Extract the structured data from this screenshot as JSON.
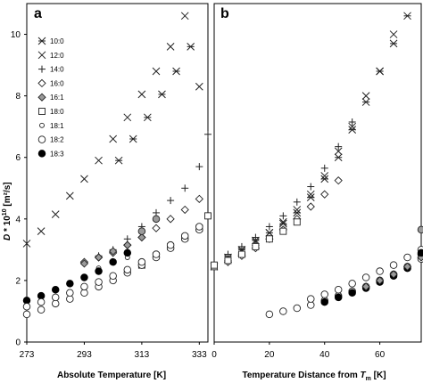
{
  "chart_data": [
    {
      "panel": "a",
      "type": "scatter",
      "xlabel": "Absolute Temperature [K]",
      "ylabel": "D * 10^10 [m²/s]",
      "xlim": [
        273,
        336
      ],
      "ylim": [
        0,
        11
      ],
      "xticks": [
        "273",
        "293",
        "313",
        "333"
      ],
      "yticks": [
        "0",
        "2",
        "4",
        "6",
        "8",
        "10"
      ],
      "legend": "top-left",
      "series": [
        {
          "name": "10:0",
          "marker": "asterisk",
          "x": [
            305,
            310,
            315,
            320,
            325,
            330
          ],
          "y": [
            5.9,
            6.6,
            7.3,
            8.05,
            8.8,
            9.6
          ]
        },
        {
          "name": "12:0",
          "marker": "x",
          "x": [
            273,
            278,
            283,
            288,
            293,
            298,
            303,
            308,
            313,
            318,
            323,
            328,
            333
          ],
          "y": [
            3.2,
            3.6,
            4.15,
            4.75,
            5.3,
            5.9,
            6.6,
            7.3,
            8.05,
            8.8,
            9.6,
            10.6,
            8.3
          ]
        },
        {
          "name": "14:0",
          "marker": "plus",
          "x": [
            293,
            298,
            303,
            308,
            313,
            318,
            323,
            328,
            333,
            336
          ],
          "y": [
            2.6,
            2.8,
            3.0,
            3.35,
            3.75,
            4.2,
            4.6,
            5.0,
            5.7,
            6.75
          ]
        },
        {
          "name": "16:0",
          "marker": "diamond",
          "x": [
            293,
            298,
            303,
            308,
            313,
            318,
            323,
            328,
            333
          ],
          "y": [
            2.6,
            2.75,
            2.9,
            3.15,
            3.4,
            3.7,
            4.0,
            4.3,
            4.65
          ]
        },
        {
          "name": "16:1",
          "marker": "diamond-gray",
          "x": [
            293,
            298,
            303,
            308,
            313
          ],
          "y": [
            2.55,
            2.75,
            2.95,
            3.15,
            3.4
          ]
        },
        {
          "name": "18:0",
          "marker": "square",
          "x": [
            313,
            318,
            323,
            328,
            333,
            336
          ],
          "y": [
            2.5,
            2.8,
            3.1,
            3.4,
            3.7,
            4.1
          ]
        },
        {
          "name": "18:1",
          "marker": "circle-small",
          "x": [
            298,
            303,
            308
          ],
          "y": [
            2.4,
            2.6,
            2.75
          ]
        },
        {
          "name": "18:2",
          "marker": "circle",
          "x": [
            273,
            278,
            283,
            288,
            293,
            298,
            303,
            308,
            313,
            318,
            323,
            328,
            333
          ],
          "y": [
            0.9,
            1.05,
            1.25,
            1.4,
            1.6,
            1.8,
            2.0,
            2.25,
            2.5,
            2.75,
            3.05,
            3.35,
            3.65
          ]
        },
        {
          "name": "18:3",
          "marker": "circle-filled",
          "x": [
            273,
            278,
            283,
            288,
            293,
            298,
            303,
            308
          ],
          "y": [
            1.35,
            1.5,
            1.7,
            1.9,
            2.1,
            2.3,
            2.6,
            2.9
          ]
        },
        {
          "name": "",
          "marker": "circle-gray",
          "x": [
            313,
            318
          ],
          "y": [
            3.6,
            4.0
          ]
        },
        {
          "name": "",
          "marker": "circle",
          "x": [
            273,
            278,
            283,
            288,
            293,
            298,
            303,
            308,
            313,
            318,
            323,
            328,
            333
          ],
          "y": [
            1.15,
            1.3,
            1.45,
            1.6,
            1.8,
            1.95,
            2.15,
            2.35,
            2.6,
            2.85,
            3.15,
            3.45,
            3.75
          ]
        }
      ]
    },
    {
      "panel": "b",
      "type": "scatter",
      "xlabel": "Temperature Distance from T_m [K]",
      "xlabel_main": "Temperature Distance from ",
      "xlabel_sym": "T",
      "xlabel_sub": "m",
      "xlabel_unit": " [K]",
      "xlim": [
        0,
        75
      ],
      "ylim": [
        0,
        11
      ],
      "xticks": [
        "0",
        "20",
        "40",
        "60"
      ],
      "series": [
        {
          "name": "10:0",
          "marker": "asterisk",
          "x": [
            5,
            10,
            15,
            20,
            25,
            30,
            35,
            40,
            45,
            50,
            55,
            60,
            65,
            70
          ],
          "y": [
            2.75,
            3.0,
            3.3,
            3.55,
            3.85,
            4.2,
            4.7,
            5.3,
            6.0,
            6.9,
            7.8,
            8.8,
            9.7,
            10.6
          ]
        },
        {
          "name": "12:0",
          "marker": "x",
          "x": [
            0,
            5,
            10,
            15,
            20,
            25,
            30,
            35,
            40,
            45,
            50,
            55,
            60,
            65
          ],
          "y": [
            2.45,
            2.7,
            2.95,
            3.25,
            3.55,
            3.9,
            4.3,
            4.8,
            5.4,
            6.2,
            7.0,
            8.0,
            8.8,
            10.0
          ]
        },
        {
          "name": "14:0",
          "marker": "plus",
          "x": [
            5,
            10,
            15,
            20,
            25,
            30,
            35,
            40,
            45,
            50
          ],
          "y": [
            2.85,
            3.1,
            3.4,
            3.75,
            4.1,
            4.55,
            5.05,
            5.65,
            6.35,
            7.15
          ]
        },
        {
          "name": "16:0",
          "marker": "diamond",
          "x": [
            5,
            10,
            15,
            20,
            25,
            30,
            35,
            40,
            45
          ],
          "y": [
            2.6,
            2.8,
            3.05,
            3.35,
            3.65,
            4.0,
            4.4,
            4.8,
            5.25
          ]
        },
        {
          "name": "18:0",
          "marker": "square",
          "x": [
            0,
            5,
            10,
            15,
            20,
            25,
            30
          ],
          "y": [
            2.45,
            2.65,
            2.85,
            3.1,
            3.35,
            3.6,
            3.9
          ]
        },
        {
          "name": "18:2",
          "marker": "circle",
          "x": [
            20,
            25,
            30,
            35,
            40,
            45,
            50,
            55,
            60,
            65,
            70,
            75
          ],
          "y": [
            0.9,
            1.0,
            1.1,
            1.2,
            1.35,
            1.5,
            1.65,
            1.8,
            2.0,
            2.2,
            2.45,
            2.7
          ]
        },
        {
          "name": "18:3",
          "marker": "circle-filled",
          "x": [
            40,
            45,
            50,
            55,
            60,
            65,
            70,
            75
          ],
          "y": [
            1.3,
            1.45,
            1.6,
            1.75,
            1.95,
            2.15,
            2.4,
            2.85
          ]
        },
        {
          "name": "16:1",
          "marker": "diamond-gray",
          "x": [
            55,
            60,
            65,
            70,
            75
          ],
          "y": [
            1.8,
            2.0,
            2.2,
            2.45,
            2.75
          ]
        },
        {
          "name": "",
          "marker": "circle",
          "x": [
            35,
            40,
            45,
            50,
            55,
            60,
            65,
            70,
            75
          ],
          "y": [
            1.4,
            1.55,
            1.7,
            1.9,
            2.1,
            2.3,
            2.5,
            2.75,
            3.0
          ]
        },
        {
          "name": "",
          "marker": "circle-gray",
          "x": [
            75
          ],
          "y": [
            3.65
          ]
        },
        {
          "name": "",
          "marker": "circle-filled",
          "x": [
            75
          ],
          "y": [
            2.9
          ]
        },
        {
          "name": "",
          "marker": "square",
          "x": [
            0
          ],
          "y": [
            2.5
          ]
        }
      ]
    }
  ],
  "panels": {
    "a": {
      "letter": "a"
    },
    "b": {
      "letter": "b"
    }
  },
  "ylabel_parts": {
    "d": "D",
    "rest": " * 10",
    "exp": "10",
    "unit": " [m²/s]"
  },
  "colors": {
    "axis": "#000000",
    "gray_fill": "#9a9a9a",
    "marker_stroke": "#222222"
  }
}
